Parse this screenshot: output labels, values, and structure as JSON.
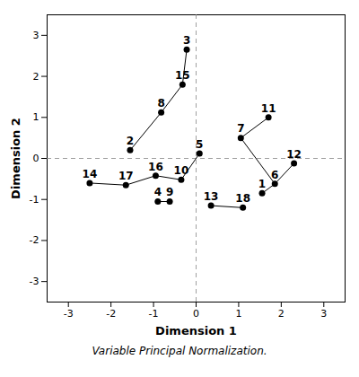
{
  "chart_data": {
    "type": "scatter",
    "title": "Variable Principal Normalization.",
    "xlabel": "Dimension 1",
    "ylabel": "Dimension 2",
    "xlim": [
      -3.5,
      3.5
    ],
    "ylim": [
      -3.5,
      3.5
    ],
    "xticks": [
      -3,
      -2,
      -1,
      0,
      1,
      2,
      3
    ],
    "yticks": [
      -3,
      -2,
      -1,
      0,
      1,
      2,
      3
    ],
    "grid": false,
    "points": [
      {
        "id": 1,
        "x": 1.55,
        "y": -0.85
      },
      {
        "id": 2,
        "x": -1.55,
        "y": 0.2
      },
      {
        "id": 3,
        "x": -0.22,
        "y": 2.65
      },
      {
        "id": 4,
        "x": -0.9,
        "y": -1.05
      },
      {
        "id": 5,
        "x": 0.08,
        "y": 0.12
      },
      {
        "id": 6,
        "x": 1.85,
        "y": -0.62
      },
      {
        "id": 7,
        "x": 1.05,
        "y": 0.5
      },
      {
        "id": 8,
        "x": -0.82,
        "y": 1.12
      },
      {
        "id": 9,
        "x": -0.62,
        "y": -1.05
      },
      {
        "id": 10,
        "x": -0.35,
        "y": -0.52
      },
      {
        "id": 11,
        "x": 1.7,
        "y": 1.0
      },
      {
        "id": 12,
        "x": 2.3,
        "y": -0.12
      },
      {
        "id": 13,
        "x": 0.35,
        "y": -1.15
      },
      {
        "id": 14,
        "x": -2.5,
        "y": -0.6
      },
      {
        "id": 15,
        "x": -0.32,
        "y": 1.8
      },
      {
        "id": 16,
        "x": -0.95,
        "y": -0.42
      },
      {
        "id": 17,
        "x": -1.65,
        "y": -0.65
      },
      {
        "id": 18,
        "x": 1.1,
        "y": -1.2
      }
    ],
    "segments": [
      {
        "x0": -0.22,
        "y0": 2.65,
        "x1": -0.32,
        "y1": 1.8
      },
      {
        "x0": -0.82,
        "y0": 1.12,
        "x1": -0.32,
        "y1": 1.8
      },
      {
        "x0": -1.55,
        "y0": 0.2,
        "x1": -0.82,
        "y1": 1.12
      },
      {
        "x0": -2.5,
        "y0": -0.6,
        "x1": -1.65,
        "y1": -0.65
      },
      {
        "x0": -1.65,
        "y0": -0.65,
        "x1": -0.95,
        "y1": -0.42
      },
      {
        "x0": -0.95,
        "y0": -0.42,
        "x1": -0.35,
        "y1": -0.52
      },
      {
        "x0": -0.9,
        "y0": -1.05,
        "x1": -0.62,
        "y1": -1.05
      },
      {
        "x0": 0.08,
        "y0": 0.12,
        "x1": -0.35,
        "y1": -0.52
      },
      {
        "x0": 1.7,
        "y0": 1.0,
        "x1": 1.05,
        "y1": 0.5
      },
      {
        "x0": 1.05,
        "y0": 0.5,
        "x1": 1.85,
        "y1": -0.62
      },
      {
        "x0": 1.55,
        "y0": -0.85,
        "x1": 1.85,
        "y1": -0.62
      },
      {
        "x0": 2.3,
        "y0": -0.12,
        "x1": 1.85,
        "y1": -0.62
      },
      {
        "x0": 0.35,
        "y0": -1.15,
        "x1": 1.1,
        "y1": -1.2
      }
    ],
    "rules": {
      "x": [
        0
      ],
      "y": [
        0
      ]
    }
  }
}
